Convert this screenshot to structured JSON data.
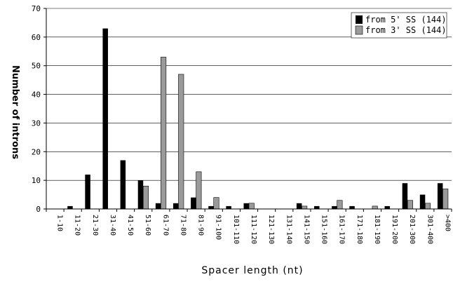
{
  "chart_data": {
    "type": "bar",
    "title": "",
    "xlabel": "Spacer length (nt)",
    "ylabel": "Number of introns",
    "ylim": [
      0,
      70
    ],
    "yticks": [
      0,
      10,
      20,
      30,
      40,
      50,
      60,
      70
    ],
    "grid": "horizontal",
    "legend_position": "top-right",
    "categories": [
      "1-10",
      "11-20",
      "21-30",
      "31-40",
      "41-50",
      "51-60",
      "61-70",
      "71-80",
      "81-90",
      "91-100",
      "101-110",
      "111-120",
      "121-130",
      "131-140",
      "141-150",
      "151-160",
      "161-170",
      "171-180",
      "181-190",
      "191-200",
      "201-300",
      "301-400",
      ">400"
    ],
    "series": [
      {
        "name": "from 5' SS (144)",
        "color": "#000000",
        "values": [
          0,
          1,
          12,
          63,
          17,
          10,
          2,
          2,
          4,
          1,
          1,
          2,
          0,
          0,
          2,
          1,
          1,
          1,
          0,
          1,
          9,
          5,
          9
        ]
      },
      {
        "name": "from 3' SS (144)",
        "color": "#9a9a9a",
        "values": [
          0,
          0,
          0,
          0,
          0,
          8,
          53,
          47,
          13,
          4,
          0,
          2,
          0,
          0,
          1,
          0,
          3,
          0,
          1,
          0,
          3,
          2,
          7
        ]
      }
    ]
  }
}
